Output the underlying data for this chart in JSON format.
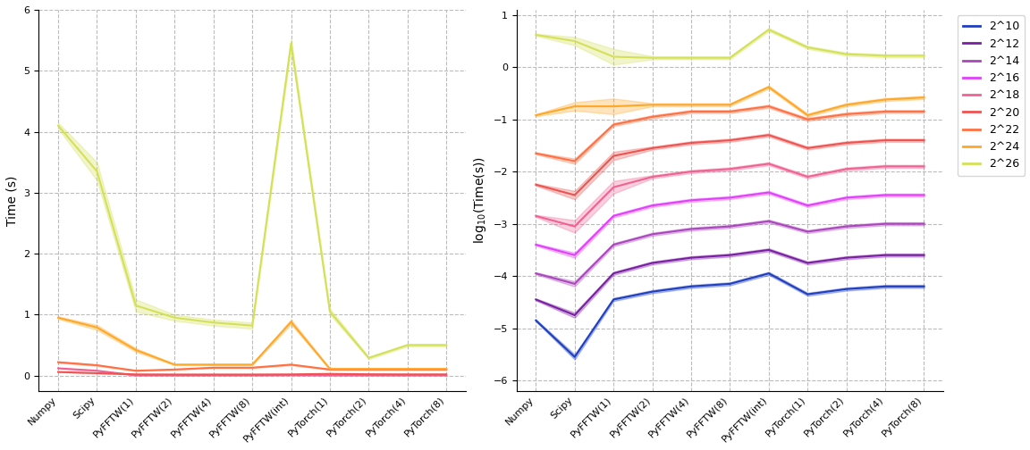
{
  "x_labels": [
    "Numpy",
    "Scipy",
    "PyFFTW(1)",
    "PyFFTW(2)",
    "PyFFTW(4)",
    "PyFFTW(8)",
    "PyFFTW(int)",
    "PyTorch(1)",
    "PyTorch(2)",
    "PyTorch(4)",
    "PyTorch(8)"
  ],
  "sizes": [
    "2^10",
    "2^12",
    "2^14",
    "2^16",
    "2^18",
    "2^20",
    "2^22",
    "2^24",
    "2^26"
  ],
  "colors": [
    "#1f3fbf",
    "#7b1fa2",
    "#ab47bc",
    "#e040fb",
    "#f06292",
    "#ef5350",
    "#ff7043",
    "#ffa726",
    "#d4e157"
  ],
  "log10_means": [
    [
      -4.85,
      -5.55,
      -4.45,
      -4.3,
      -4.2,
      -4.15,
      -3.95,
      -4.35,
      -4.25,
      -4.2,
      -4.2
    ],
    [
      -4.45,
      -4.75,
      -3.95,
      -3.75,
      -3.65,
      -3.6,
      -3.5,
      -3.75,
      -3.65,
      -3.6,
      -3.6
    ],
    [
      -3.95,
      -4.15,
      -3.4,
      -3.2,
      -3.1,
      -3.05,
      -2.95,
      -3.15,
      -3.05,
      -3.0,
      -3.0
    ],
    [
      -3.4,
      -3.6,
      -2.85,
      -2.65,
      -2.55,
      -2.5,
      -2.4,
      -2.65,
      -2.5,
      -2.45,
      -2.45
    ],
    [
      -2.85,
      -3.05,
      -2.3,
      -2.1,
      -2.0,
      -1.95,
      -1.85,
      -2.1,
      -1.95,
      -1.9,
      -1.9
    ],
    [
      -2.25,
      -2.45,
      -1.7,
      -1.55,
      -1.45,
      -1.4,
      -1.3,
      -1.55,
      -1.45,
      -1.4,
      -1.4
    ],
    [
      -1.65,
      -1.8,
      -1.1,
      -0.95,
      -0.85,
      -0.85,
      -0.75,
      -1.0,
      -0.9,
      -0.85,
      -0.85
    ],
    [
      -0.92,
      -0.75,
      -0.75,
      -0.72,
      -0.72,
      -0.72,
      -0.38,
      -0.92,
      -0.72,
      -0.62,
      -0.58
    ],
    [
      0.62,
      0.5,
      0.2,
      0.18,
      0.18,
      0.18,
      0.72,
      0.38,
      0.25,
      0.22,
      0.22
    ]
  ],
  "log10_stds": [
    [
      0.02,
      0.05,
      0.03,
      0.03,
      0.03,
      0.03,
      0.03,
      0.03,
      0.03,
      0.03,
      0.03
    ],
    [
      0.02,
      0.05,
      0.03,
      0.03,
      0.03,
      0.03,
      0.03,
      0.03,
      0.03,
      0.03,
      0.03
    ],
    [
      0.02,
      0.05,
      0.03,
      0.03,
      0.03,
      0.03,
      0.03,
      0.03,
      0.03,
      0.03,
      0.03
    ],
    [
      0.02,
      0.05,
      0.03,
      0.03,
      0.03,
      0.03,
      0.03,
      0.03,
      0.03,
      0.03,
      0.03
    ],
    [
      0.02,
      0.12,
      0.12,
      0.03,
      0.03,
      0.03,
      0.03,
      0.03,
      0.03,
      0.03,
      0.03
    ],
    [
      0.02,
      0.08,
      0.08,
      0.03,
      0.03,
      0.03,
      0.03,
      0.03,
      0.03,
      0.03,
      0.03
    ],
    [
      0.02,
      0.05,
      0.03,
      0.03,
      0.03,
      0.03,
      0.03,
      0.03,
      0.03,
      0.03,
      0.03
    ],
    [
      0.02,
      0.08,
      0.15,
      0.03,
      0.03,
      0.03,
      0.03,
      0.03,
      0.03,
      0.03,
      0.03
    ],
    [
      0.02,
      0.08,
      0.15,
      0.03,
      0.03,
      0.03,
      0.03,
      0.03,
      0.03,
      0.03,
      0.03
    ]
  ],
  "linear_means": [
    [
      0.0,
      0.0,
      0.0,
      0.0,
      0.0,
      0.0,
      0.0,
      0.0,
      0.0,
      0.0,
      0.0
    ],
    [
      0.0,
      0.0,
      0.0,
      0.0,
      0.0,
      0.0,
      0.0,
      0.0,
      0.0,
      0.0,
      0.0
    ],
    [
      0.0,
      0.0,
      0.0,
      0.0,
      0.0,
      0.0,
      0.0,
      0.0,
      0.0,
      0.0,
      0.0
    ],
    [
      0.0,
      0.0,
      0.0,
      0.0,
      0.0,
      0.0,
      0.0,
      0.0,
      0.0,
      0.0,
      0.0
    ],
    [
      0.12,
      0.08,
      0.005,
      0.005,
      0.005,
      0.005,
      0.008,
      0.005,
      0.005,
      0.005,
      0.005
    ],
    [
      0.06,
      0.04,
      0.02,
      0.018,
      0.018,
      0.018,
      0.02,
      0.028,
      0.022,
      0.02,
      0.02
    ],
    [
      0.22,
      0.17,
      0.08,
      0.1,
      0.13,
      0.13,
      0.18,
      0.1,
      0.1,
      0.1,
      0.1
    ],
    [
      0.95,
      0.79,
      0.42,
      0.18,
      0.18,
      0.18,
      0.88,
      0.11,
      0.11,
      0.11,
      0.11
    ],
    [
      4.1,
      3.35,
      1.15,
      0.95,
      0.87,
      0.82,
      5.45,
      1.05,
      0.29,
      0.5,
      0.5
    ]
  ],
  "linear_stds": [
    [
      0.0,
      0.0,
      0.0,
      0.0,
      0.0,
      0.0,
      0.0,
      0.0,
      0.0,
      0.0,
      0.0
    ],
    [
      0.0,
      0.0,
      0.0,
      0.0,
      0.0,
      0.0,
      0.0,
      0.0,
      0.0,
      0.0,
      0.0
    ],
    [
      0.0,
      0.0,
      0.0,
      0.0,
      0.0,
      0.0,
      0.0,
      0.0,
      0.0,
      0.0,
      0.0
    ],
    [
      0.0,
      0.0,
      0.0,
      0.0,
      0.0,
      0.0,
      0.0,
      0.0,
      0.0,
      0.0,
      0.0
    ],
    [
      0.005,
      0.005,
      0.001,
      0.001,
      0.001,
      0.001,
      0.001,
      0.001,
      0.001,
      0.001,
      0.001
    ],
    [
      0.003,
      0.003,
      0.002,
      0.002,
      0.002,
      0.002,
      0.002,
      0.003,
      0.003,
      0.003,
      0.003
    ],
    [
      0.01,
      0.01,
      0.005,
      0.005,
      0.005,
      0.005,
      0.01,
      0.005,
      0.005,
      0.005,
      0.005
    ],
    [
      0.02,
      0.04,
      0.03,
      0.01,
      0.01,
      0.01,
      0.04,
      0.01,
      0.01,
      0.01,
      0.01
    ],
    [
      0.05,
      0.15,
      0.1,
      0.05,
      0.05,
      0.05,
      0.08,
      0.05,
      0.02,
      0.02,
      0.02
    ]
  ],
  "ylabel_linear": "Time (s)",
  "ylabel_log": "log$_{10}$(Time(s))",
  "ylim_log": [
    -6.2,
    1.1
  ],
  "ylim_linear": [
    -0.25,
    6.0
  ],
  "background": "#ffffff",
  "grid_color": "#bbbbbb",
  "grid_linestyle": "--"
}
